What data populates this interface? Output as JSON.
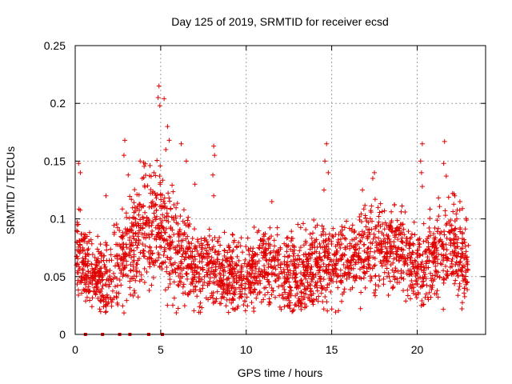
{
  "chart_data": {
    "type": "scatter",
    "title": "Day 125 of 2019, SRMTID for receiver ecsd",
    "xlabel": "GPS time / hours",
    "ylabel": "SRMTID / TECUs",
    "xlim": [
      0,
      24
    ],
    "ylim": [
      0,
      0.25
    ],
    "xticks": [
      0,
      5,
      10,
      15,
      20
    ],
    "xtick_labels": [
      "0",
      "5",
      "10",
      "15",
      "20"
    ],
    "yticks": [
      0,
      0.05,
      0.1,
      0.15,
      0.2,
      0.25
    ],
    "ytick_labels": [
      "0",
      "0.05",
      "0.1",
      "0.15",
      "0.2",
      "0.25"
    ],
    "grid": true,
    "marker": "plus",
    "color": "#e00000",
    "data_hours": [
      0.05,
      23.0
    ],
    "zero_markers_x": [
      0.6,
      1.6,
      2.6,
      3.2,
      4.3,
      5.1
    ],
    "envelope": {
      "hours": [
        0,
        1,
        2,
        3,
        4,
        5,
        6,
        7,
        8,
        9,
        10,
        11,
        12,
        13,
        14,
        15,
        16,
        17,
        18,
        19,
        20,
        21,
        22,
        23
      ],
      "median": [
        0.075,
        0.05,
        0.045,
        0.075,
        0.09,
        0.095,
        0.07,
        0.06,
        0.055,
        0.05,
        0.055,
        0.06,
        0.055,
        0.05,
        0.06,
        0.06,
        0.065,
        0.075,
        0.075,
        0.07,
        0.055,
        0.065,
        0.08,
        0.06
      ],
      "spread": [
        0.03,
        0.025,
        0.025,
        0.035,
        0.035,
        0.04,
        0.035,
        0.03,
        0.025,
        0.025,
        0.025,
        0.025,
        0.025,
        0.025,
        0.03,
        0.025,
        0.025,
        0.03,
        0.03,
        0.025,
        0.025,
        0.03,
        0.03,
        0.025
      ]
    },
    "notable_points": [
      {
        "x": 0.2,
        "y": 0.148
      },
      {
        "x": 0.3,
        "y": 0.14
      },
      {
        "x": 1.8,
        "y": 0.12
      },
      {
        "x": 2.9,
        "y": 0.168
      },
      {
        "x": 2.85,
        "y": 0.155
      },
      {
        "x": 3.1,
        "y": 0.138
      },
      {
        "x": 3.8,
        "y": 0.15
      },
      {
        "x": 4.6,
        "y": 0.14
      },
      {
        "x": 4.9,
        "y": 0.215
      },
      {
        "x": 4.85,
        "y": 0.205
      },
      {
        "x": 4.95,
        "y": 0.198
      },
      {
        "x": 5.2,
        "y": 0.204
      },
      {
        "x": 5.4,
        "y": 0.18
      },
      {
        "x": 5.5,
        "y": 0.168
      },
      {
        "x": 5.3,
        "y": 0.16
      },
      {
        "x": 6.2,
        "y": 0.165
      },
      {
        "x": 6.5,
        "y": 0.15
      },
      {
        "x": 7.0,
        "y": 0.13
      },
      {
        "x": 8.1,
        "y": 0.163
      },
      {
        "x": 8.15,
        "y": 0.155
      },
      {
        "x": 8.05,
        "y": 0.138
      },
      {
        "x": 8.1,
        "y": 0.12
      },
      {
        "x": 11.5,
        "y": 0.115
      },
      {
        "x": 14.7,
        "y": 0.165
      },
      {
        "x": 14.6,
        "y": 0.15
      },
      {
        "x": 14.8,
        "y": 0.14
      },
      {
        "x": 14.55,
        "y": 0.125
      },
      {
        "x": 17.5,
        "y": 0.14
      },
      {
        "x": 17.4,
        "y": 0.135
      },
      {
        "x": 16.8,
        "y": 0.125
      },
      {
        "x": 20.3,
        "y": 0.165
      },
      {
        "x": 20.2,
        "y": 0.15
      },
      {
        "x": 20.25,
        "y": 0.14
      },
      {
        "x": 20.3,
        "y": 0.128
      },
      {
        "x": 21.6,
        "y": 0.167
      },
      {
        "x": 21.55,
        "y": 0.148
      },
      {
        "x": 21.7,
        "y": 0.137
      },
      {
        "x": 22.2,
        "y": 0.12
      },
      {
        "x": 22.5,
        "y": 0.115
      }
    ]
  }
}
